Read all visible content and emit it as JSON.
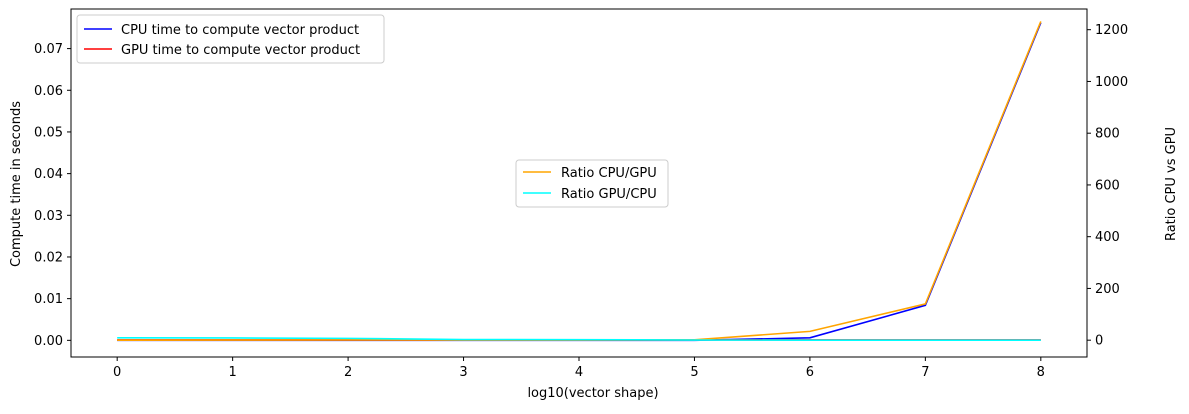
{
  "chart_data": {
    "type": "line",
    "xlabel": "log10(vector shape)",
    "ylabel_left": "Compute time in seconds",
    "ylabel_right": "Ratio CPU vs GPU",
    "x": [
      0,
      1,
      2,
      3,
      4,
      5,
      6,
      7,
      8
    ],
    "xlim": [
      -0.4,
      8.4
    ],
    "ylim_left": [
      -0.004,
      0.0795
    ],
    "ylim_right": [
      -65,
      1280
    ],
    "xticks": [
      0,
      1,
      2,
      3,
      4,
      5,
      6,
      7,
      8
    ],
    "yticks_left": [
      0.0,
      0.01,
      0.02,
      0.03,
      0.04,
      0.05,
      0.06,
      0.07
    ],
    "yticks_left_labels": [
      "0.00",
      "0.01",
      "0.02",
      "0.03",
      "0.04",
      "0.05",
      "0.06",
      "0.07"
    ],
    "yticks_right": [
      0,
      200,
      400,
      600,
      800,
      1000,
      1200
    ],
    "series_left": [
      {
        "name": "CPU time to compute vector product",
        "color": "#0000ff",
        "values": [
          0.0,
          0.0,
          0.0,
          0.0,
          0.0,
          0.0,
          0.0006,
          0.0084,
          0.0762
        ]
      },
      {
        "name": "GPU time to compute vector product",
        "color": "#ff0000",
        "values": [
          0.0001,
          0.0001,
          0.0001,
          0.0001,
          0.0001,
          0.0001,
          0.0001,
          0.0001,
          0.0001
        ]
      }
    ],
    "series_right": [
      {
        "name": "Ratio CPU/GPU",
        "color": "#ffa500",
        "values": [
          0.1,
          0.5,
          1.0,
          0.3,
          0.5,
          1.5,
          34,
          140,
          1232
        ]
      },
      {
        "name": "Ratio GPU/CPU",
        "color": "#00ffff",
        "values": [
          9,
          8.5,
          7,
          2.5,
          2,
          0.6,
          0.03,
          0.007,
          0.001
        ]
      }
    ],
    "legend_left_placement": "upper left",
    "legend_right_placement": "center",
    "grid": false
  }
}
